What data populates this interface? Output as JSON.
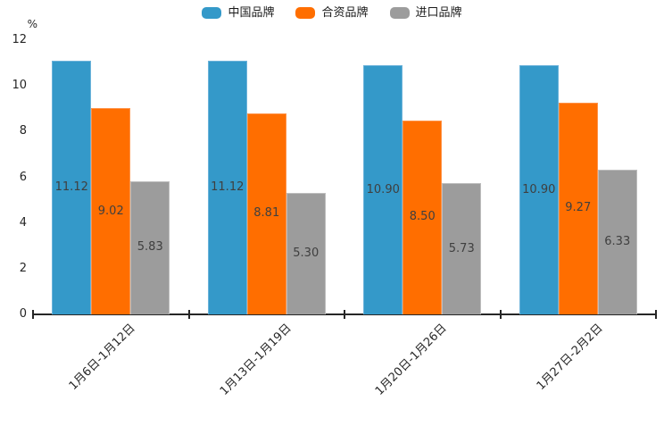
{
  "chart_data": {
    "type": "bar",
    "title": "",
    "ylabel": "%",
    "xlabel": "",
    "categories": [
      "1月6日-1月12日",
      "1月13日-1月19日",
      "1月20日-1月26日",
      "1月27日-2月2日"
    ],
    "series": [
      {
        "name": "中国品牌",
        "color": "#3499C9",
        "border_color": "#6CB3DA",
        "values": [
          11.12,
          11.12,
          10.9,
          10.9
        ]
      },
      {
        "name": "合资品牌",
        "color": "#FF6E00",
        "border_color": "#FF9348",
        "values": [
          9.02,
          8.81,
          8.5,
          9.27
        ]
      },
      {
        "name": "进口品牌",
        "color": "#9C9C9C",
        "border_color": "#BDBDBD",
        "values": [
          5.83,
          5.3,
          5.73,
          6.33
        ]
      }
    ],
    "value_labels": [
      [
        "11.12",
        "11.12",
        "10.90",
        "10.90"
      ],
      [
        "9.02",
        "8.81",
        "8.50",
        "9.27"
      ],
      [
        "5.83",
        "5.30",
        "5.73",
        "6.33"
      ]
    ],
    "ylim": [
      0,
      12
    ],
    "yticks": [
      0,
      2,
      4,
      6,
      8,
      10,
      12
    ],
    "grid": false,
    "legend_position": "top-center",
    "axis_color": "#262626",
    "value_label_color": "#3f3f3f"
  }
}
